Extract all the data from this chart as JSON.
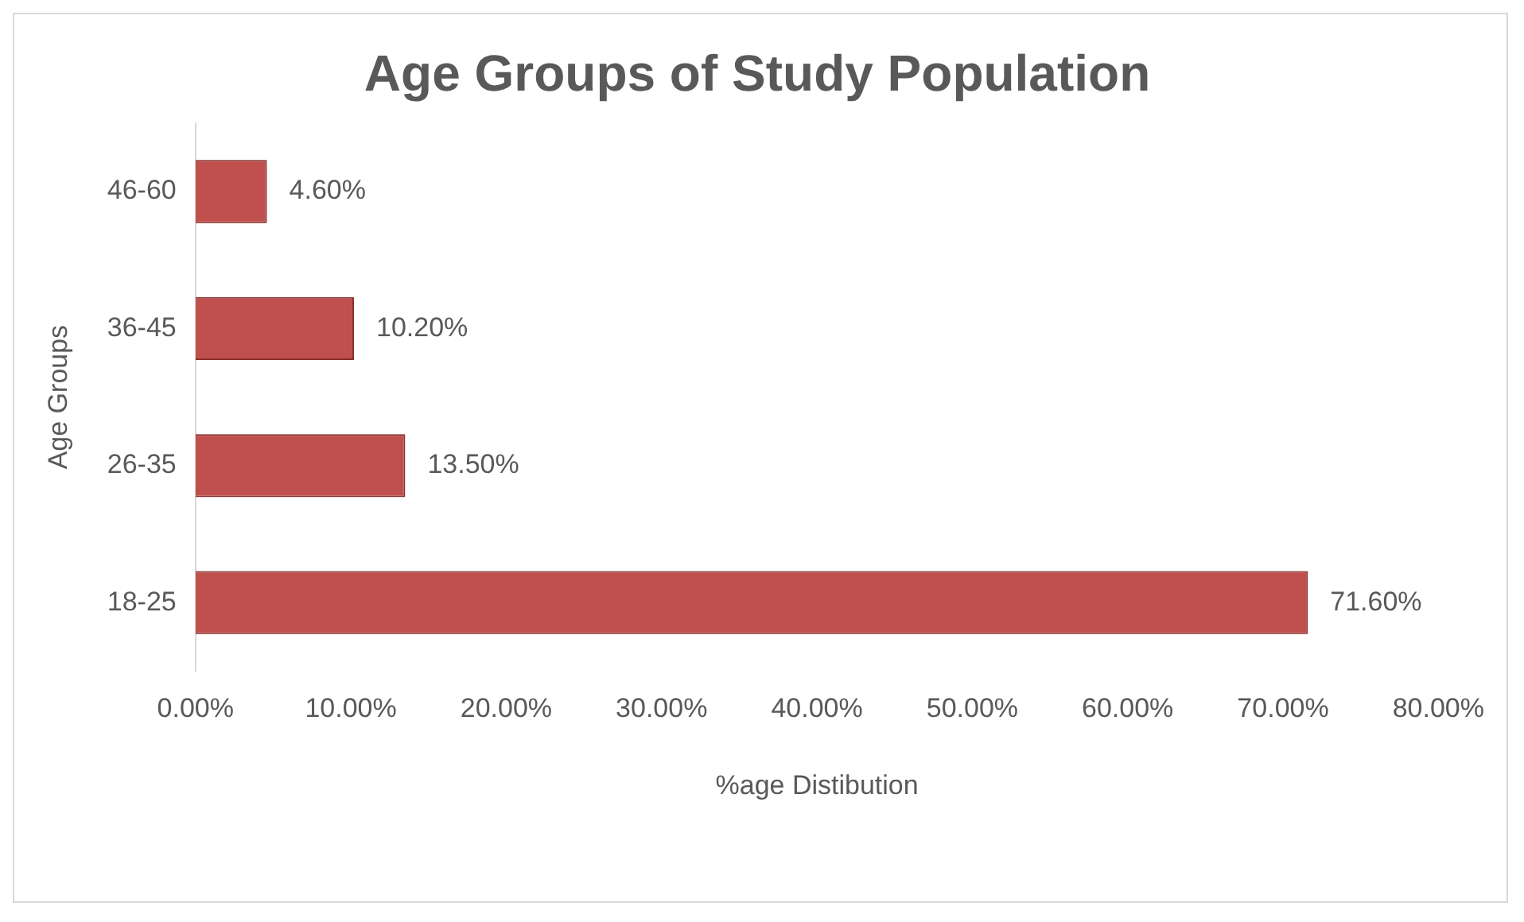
{
  "chart_data": {
    "type": "bar",
    "orientation": "horizontal",
    "title": "Age Groups of Study Population",
    "xlabel": "%age Distibution",
    "ylabel": "Age Groups",
    "categories": [
      "46-60",
      "36-45",
      "26-35",
      "18-25"
    ],
    "values": [
      4.6,
      10.2,
      13.5,
      71.6
    ],
    "value_labels": [
      "4.60%",
      "10.20%",
      "13.50%",
      "71.60%"
    ],
    "color": "#c0504d",
    "xlim": [
      0,
      80
    ],
    "xticks": [
      {
        "value": 0,
        "label": "0.00%"
      },
      {
        "value": 10,
        "label": "10.00%"
      },
      {
        "value": 20,
        "label": "20.00%"
      },
      {
        "value": 30,
        "label": "30.00%"
      },
      {
        "value": 40,
        "label": "40.00%"
      },
      {
        "value": 50,
        "label": "50.00%"
      },
      {
        "value": 60,
        "label": "60.00%"
      },
      {
        "value": 70,
        "label": "70.00%"
      },
      {
        "value": 80,
        "label": "80.00%"
      }
    ]
  }
}
